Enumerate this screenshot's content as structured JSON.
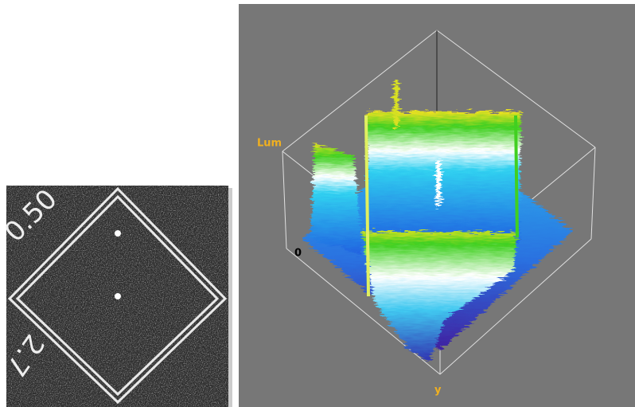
{
  "image": {
    "labels": [
      "0.50",
      "2.7"
    ]
  },
  "plot": {
    "z_label": "Lum",
    "z_origin": "0",
    "axis_label": "y"
  }
}
